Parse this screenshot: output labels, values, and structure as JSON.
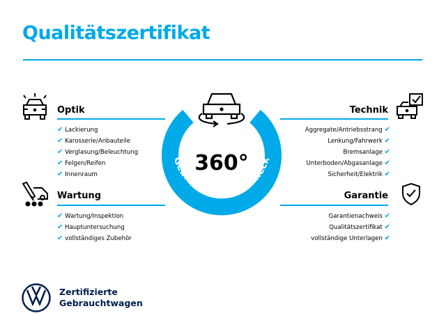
{
  "title": "Qualitätszertifikat",
  "colors": {
    "accent": "#00a9e8",
    "brand": "#001e50"
  },
  "center": {
    "value": "360°",
    "ring_text": "Gebrauchtwagen-Check",
    "icon": "car-rotate-360-icon"
  },
  "sections": {
    "optik": {
      "heading": "Optik",
      "icon": "car-lights-icon",
      "items": [
        "Lackierung",
        "Karosserie/Anbauteile",
        "Verglasung/Beleuchtung",
        "Felgen/Reifen",
        "Innenraum"
      ]
    },
    "wartung": {
      "heading": "Wartung",
      "icon": "service-tools-car-icon",
      "items": [
        "Wartung/Inspektion",
        "Hauptuntersuchung",
        "vollständiges Zubehör"
      ]
    },
    "technik": {
      "heading": "Technik",
      "icon": "car-checklist-icon",
      "items": [
        "Aggregate/Antriebsstrang",
        "Lenkung/Fahrwerk",
        "Bremsanlage",
        "Unterboden/Abgasanlage",
        "Sicherheit/Elektrik"
      ]
    },
    "garantie": {
      "heading": "Garantie",
      "icon": "shield-check-icon",
      "items": [
        "Garantienachweis",
        "Qualitätszertifikat",
        "vollständige Unterlagen"
      ]
    }
  },
  "checkmark": "✔",
  "brand": {
    "logo": "VW",
    "line1": "Zertifizierte",
    "line2": "Gebrauchtwagen"
  }
}
